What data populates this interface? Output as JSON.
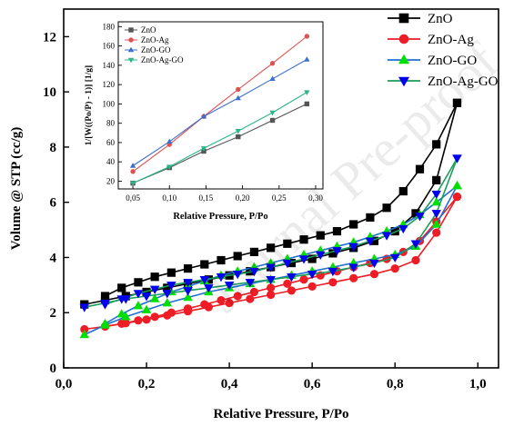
{
  "watermark": "Journal Pre-proof",
  "chart_data": [
    {
      "type": "line",
      "xlabel": "Relative Pressure, P/Po",
      "ylabel": "Volume @ STP (cc/g)",
      "xlim": [
        0,
        1.05
      ],
      "ylim": [
        0,
        13
      ],
      "xticks": [
        0.0,
        0.2,
        0.4,
        0.6,
        0.8,
        1.0
      ],
      "xtick_labels": [
        "0,0",
        "0,2",
        "0,4",
        "0,6",
        "0,8",
        "1,0"
      ],
      "yticks": [
        0,
        2,
        4,
        6,
        8,
        10,
        12
      ],
      "ytick_labels": [
        "0",
        "2",
        "4",
        "6",
        "8",
        "10",
        "12"
      ],
      "legend_position": "top-right",
      "series": [
        {
          "name": "ZnO",
          "color": "#000000",
          "marker": "square",
          "adsorption": {
            "x": [
              0.05,
              0.1,
              0.15,
              0.2,
              0.25,
              0.3,
              0.35,
              0.4,
              0.45,
              0.5,
              0.55,
              0.6,
              0.65,
              0.7,
              0.75,
              0.8,
              0.85,
              0.9,
              0.95
            ],
            "y": [
              2.3,
              2.45,
              2.6,
              2.75,
              2.9,
              3.05,
              3.2,
              3.35,
              3.5,
              3.65,
              3.8,
              3.95,
              4.15,
              4.35,
              4.6,
              4.95,
              5.6,
              6.8,
              9.6
            ]
          },
          "desorption": {
            "x": [
              0.95,
              0.9,
              0.86,
              0.82,
              0.78,
              0.74,
              0.7,
              0.66,
              0.62,
              0.58,
              0.54,
              0.5,
              0.46,
              0.42,
              0.38,
              0.34,
              0.3,
              0.26,
              0.22,
              0.18,
              0.14,
              0.1
            ],
            "y": [
              9.6,
              8.1,
              7.2,
              6.4,
              5.8,
              5.45,
              5.2,
              4.95,
              4.8,
              4.65,
              4.5,
              4.35,
              4.2,
              4.05,
              3.9,
              3.75,
              3.6,
              3.45,
              3.3,
              3.1,
              2.9,
              2.6
            ]
          }
        },
        {
          "name": "ZnO-Ag",
          "color": "#ee1c25",
          "marker": "circle",
          "adsorption": {
            "x": [
              0.05,
              0.1,
              0.15,
              0.2,
              0.25,
              0.3,
              0.35,
              0.4,
              0.45,
              0.5,
              0.55,
              0.6,
              0.65,
              0.7,
              0.75,
              0.8,
              0.85,
              0.9,
              0.95
            ],
            "y": [
              1.4,
              1.5,
              1.62,
              1.75,
              1.9,
              2.05,
              2.2,
              2.35,
              2.5,
              2.65,
              2.8,
              2.95,
              3.1,
              3.25,
              3.4,
              3.6,
              3.9,
              4.9,
              6.2
            ]
          },
          "desorption": {
            "x": [
              0.95,
              0.9,
              0.86,
              0.82,
              0.78,
              0.74,
              0.7,
              0.66,
              0.62,
              0.58,
              0.54,
              0.5,
              0.46,
              0.42,
              0.38,
              0.34,
              0.3,
              0.26,
              0.22,
              0.18,
              0.14,
              0.1
            ],
            "y": [
              6.2,
              5.3,
              4.6,
              4.2,
              3.95,
              3.8,
              3.65,
              3.5,
              3.35,
              3.2,
              3.05,
              2.9,
              2.75,
              2.6,
              2.45,
              2.3,
              2.15,
              2.0,
              1.85,
              1.72,
              1.6,
              1.5
            ]
          }
        },
        {
          "name": "ZnO-GO",
          "color": "#00e000",
          "line_color": "#1f6fd1",
          "marker": "triangle-up",
          "adsorption": {
            "x": [
              0.05,
              0.1,
              0.15,
              0.2,
              0.25,
              0.3,
              0.35,
              0.4,
              0.45,
              0.5,
              0.55,
              0.6,
              0.65,
              0.7,
              0.75,
              0.8,
              0.85,
              0.9,
              0.95
            ],
            "y": [
              1.2,
              1.55,
              1.85,
              2.1,
              2.35,
              2.55,
              2.75,
              2.9,
              3.05,
              3.2,
              3.35,
              3.5,
              3.65,
              3.8,
              3.95,
              4.1,
              4.4,
              5.2,
              6.6
            ]
          },
          "desorption": {
            "x": [
              0.95,
              0.9,
              0.86,
              0.82,
              0.78,
              0.74,
              0.7,
              0.66,
              0.62,
              0.58,
              0.54,
              0.5,
              0.46,
              0.42,
              0.38,
              0.34,
              0.3,
              0.26,
              0.22,
              0.18,
              0.14,
              0.1
            ],
            "y": [
              6.6,
              6.0,
              5.55,
              5.2,
              4.95,
              4.75,
              4.55,
              4.4,
              4.25,
              4.1,
              3.95,
              3.8,
              3.65,
              3.5,
              3.35,
              3.15,
              2.95,
              2.75,
              2.5,
              2.25,
              1.95,
              1.6
            ]
          }
        },
        {
          "name": "ZnO-Ag-GO",
          "color": "#0000ee",
          "line_color": "#1a9c5a",
          "marker": "triangle-down",
          "adsorption": {
            "x": [
              0.05,
              0.1,
              0.15,
              0.2,
              0.25,
              0.3,
              0.35,
              0.4,
              0.45,
              0.5,
              0.55,
              0.6,
              0.65,
              0.7,
              0.75,
              0.8,
              0.85,
              0.9,
              0.95
            ],
            "y": [
              2.2,
              2.35,
              2.5,
              2.6,
              2.7,
              2.8,
              2.9,
              3.0,
              3.1,
              3.2,
              3.3,
              3.4,
              3.5,
              3.65,
              3.8,
              4.0,
              4.5,
              5.6,
              7.6
            ]
          },
          "desorption": {
            "x": [
              0.95,
              0.9,
              0.86,
              0.82,
              0.78,
              0.74,
              0.7,
              0.66,
              0.62,
              0.58,
              0.54,
              0.5,
              0.46,
              0.42,
              0.38,
              0.34,
              0.3,
              0.26,
              0.22,
              0.18,
              0.14,
              0.1
            ],
            "y": [
              7.6,
              6.3,
              5.5,
              5.05,
              4.8,
              4.6,
              4.4,
              4.25,
              4.1,
              3.95,
              3.8,
              3.65,
              3.5,
              3.4,
              3.3,
              3.2,
              3.1,
              3.0,
              2.85,
              2.7,
              2.5,
              2.3
            ]
          }
        }
      ]
    },
    {
      "type": "line",
      "xlabel": "Relative Pressure, P/Po",
      "ylabel": "1/[W((Po/P) - 1)] [1/g]",
      "xlim": [
        0.03,
        0.31
      ],
      "ylim": [
        12,
        185
      ],
      "xticks": [
        0.05,
        0.1,
        0.15,
        0.2,
        0.25,
        0.3
      ],
      "xtick_labels": [
        "0,05",
        "0,10",
        "0,15",
        "0,20",
        "0,25",
        "0,30"
      ],
      "yticks": [
        20,
        40,
        60,
        80,
        100,
        120,
        140,
        160,
        180
      ],
      "ytick_labels": [
        "20",
        "40",
        "60",
        "80",
        "100",
        "120",
        "140",
        "160",
        "180"
      ],
      "legend_position": "top-left",
      "series": [
        {
          "name": "ZnO",
          "color": "#555555",
          "marker": "square",
          "x": [
            0.05,
            0.1,
            0.147,
            0.194,
            0.241,
            0.288
          ],
          "y": [
            18,
            34,
            51,
            66,
            83,
            100
          ]
        },
        {
          "name": "ZnO-Ag",
          "color": "#e05050",
          "marker": "circle",
          "x": [
            0.05,
            0.1,
            0.147,
            0.194,
            0.241,
            0.288
          ],
          "y": [
            30,
            58,
            87,
            115,
            142,
            170
          ]
        },
        {
          "name": "ZnO-GO",
          "color": "#3a6fd0",
          "marker": "triangle-up",
          "x": [
            0.05,
            0.1,
            0.147,
            0.194,
            0.241,
            0.288
          ],
          "y": [
            36,
            61,
            87,
            106,
            126,
            146
          ]
        },
        {
          "name": "ZnO-Ag-GO",
          "color": "#2bb58a",
          "marker": "triangle-down",
          "x": [
            0.05,
            0.1,
            0.147,
            0.194,
            0.241,
            0.288
          ],
          "y": [
            18,
            35,
            54,
            72,
            91,
            112
          ]
        }
      ]
    }
  ]
}
